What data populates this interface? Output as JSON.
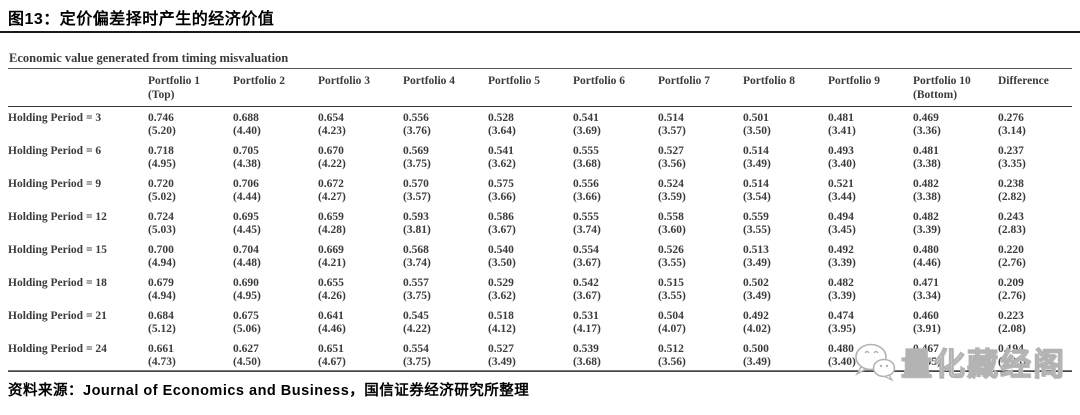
{
  "figure": {
    "title": "图13：定价偏差择时产生的经济价值",
    "subtitle": "Economic value generated from timing misvaluation",
    "source": "资料来源：Journal of Economics and Business，国信证券经济研究所整理"
  },
  "watermark": {
    "text": "量化藏经阁",
    "icon": "wechat-icon"
  },
  "colors": {
    "text": "#3b3b3b",
    "title_text": "#000000",
    "rule_dark": "#333333",
    "rule_light": "#777777",
    "watermark": "#b3b3b3"
  },
  "chart_data": {
    "type": "table",
    "title": "Economic value generated from timing misvaluation",
    "headers": [
      {
        "line1": "Portfolio 1",
        "line2": "(Top)"
      },
      {
        "line1": "Portfolio 2",
        "line2": ""
      },
      {
        "line1": "Portfolio 3",
        "line2": ""
      },
      {
        "line1": "Portfolio 4",
        "line2": ""
      },
      {
        "line1": "Portfolio 5",
        "line2": ""
      },
      {
        "line1": "Portfolio 6",
        "line2": ""
      },
      {
        "line1": "Portfolio 7",
        "line2": ""
      },
      {
        "line1": "Portfolio 8",
        "line2": ""
      },
      {
        "line1": "Portfolio 9",
        "line2": ""
      },
      {
        "line1": "Portfolio 10",
        "line2": "(Bottom)"
      },
      {
        "line1": "Difference",
        "line2": ""
      }
    ],
    "rows": [
      {
        "label": "Holding Period = 3",
        "values": [
          "0.746",
          "0.688",
          "0.654",
          "0.556",
          "0.528",
          "0.541",
          "0.514",
          "0.501",
          "0.481",
          "0.469",
          "0.276"
        ],
        "tstats": [
          "(5.20)",
          "(4.40)",
          "(4.23)",
          "(3.76)",
          "(3.64)",
          "(3.69)",
          "(3.57)",
          "(3.50)",
          "(3.41)",
          "(3.36)",
          "(3.14)"
        ]
      },
      {
        "label": "Holding Period = 6",
        "values": [
          "0.718",
          "0.705",
          "0.670",
          "0.569",
          "0.541",
          "0.555",
          "0.527",
          "0.514",
          "0.493",
          "0.481",
          "0.237"
        ],
        "tstats": [
          "(4.95)",
          "(4.38)",
          "(4.22)",
          "(3.75)",
          "(3.62)",
          "(3.68)",
          "(3.56)",
          "(3.49)",
          "(3.40)",
          "(3.38)",
          "(3.35)"
        ]
      },
      {
        "label": "Holding Period = 9",
        "values": [
          "0.720",
          "0.706",
          "0.672",
          "0.570",
          "0.575",
          "0.556",
          "0.524",
          "0.514",
          "0.521",
          "0.482",
          "0.238"
        ],
        "tstats": [
          "(5.02)",
          "(4.44)",
          "(4.27)",
          "(3.57)",
          "(3.66)",
          "(3.66)",
          "(3.59)",
          "(3.54)",
          "(3.44)",
          "(3.38)",
          "(2.82)"
        ]
      },
      {
        "label": "Holding Period = 12",
        "values": [
          "0.724",
          "0.695",
          "0.659",
          "0.593",
          "0.586",
          "0.555",
          "0.558",
          "0.559",
          "0.494",
          "0.482",
          "0.243"
        ],
        "tstats": [
          "(5.03)",
          "(4.45)",
          "(4.28)",
          "(3.81)",
          "(3.67)",
          "(3.74)",
          "(3.60)",
          "(3.55)",
          "(3.45)",
          "(3.39)",
          "(2.83)"
        ]
      },
      {
        "label": "Holding Period = 15",
        "values": [
          "0.700",
          "0.704",
          "0.669",
          "0.568",
          "0.540",
          "0.554",
          "0.526",
          "0.513",
          "0.492",
          "0.480",
          "0.220"
        ],
        "tstats": [
          "(4.94)",
          "(4.48)",
          "(4.21)",
          "(3.74)",
          "(3.50)",
          "(3.67)",
          "(3.55)",
          "(3.49)",
          "(3.39)",
          "(4.46)",
          "(2.76)"
        ]
      },
      {
        "label": "Holding Period = 18",
        "values": [
          "0.679",
          "0.690",
          "0.655",
          "0.557",
          "0.529",
          "0.542",
          "0.515",
          "0.502",
          "0.482",
          "0.471",
          "0.209"
        ],
        "tstats": [
          "(4.94)",
          "(4.95)",
          "(4.26)",
          "(3.75)",
          "(3.62)",
          "(3.67)",
          "(3.55)",
          "(3.49)",
          "(3.39)",
          "(3.34)",
          "(2.76)"
        ]
      },
      {
        "label": "Holding Period = 21",
        "values": [
          "0.684",
          "0.675",
          "0.641",
          "0.545",
          "0.518",
          "0.531",
          "0.504",
          "0.492",
          "0.474",
          "0.460",
          "0.223"
        ],
        "tstats": [
          "(5.12)",
          "(5.06)",
          "(4.46)",
          "(4.22)",
          "(4.12)",
          "(4.17)",
          "(4.07)",
          "(4.02)",
          "(3.95)",
          "(3.91)",
          "(2.08)"
        ]
      },
      {
        "label": "Holding Period = 24",
        "values": [
          "0.661",
          "0.627",
          "0.651",
          "0.554",
          "0.527",
          "0.539",
          "0.512",
          "0.500",
          "0.480",
          "0.467",
          "0.194"
        ],
        "tstats": [
          "(4.73)",
          "(4.50)",
          "(4.67)",
          "(3.75)",
          "(3.49)",
          "(3.68)",
          "(3.56)",
          "(3.49)",
          "(3.40)",
          "(3.35)",
          "(1.88)"
        ]
      }
    ]
  }
}
